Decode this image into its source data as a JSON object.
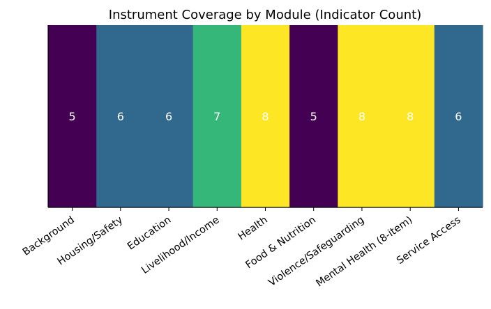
{
  "chart_data": {
    "type": "heatmap",
    "title": "Instrument Coverage by Module (Indicator Count)",
    "xlabel": "",
    "ylabel": "",
    "categories": [
      "Background",
      "Housing/Safety",
      "Education",
      "Livelihood/Income",
      "Health",
      "Food & Nutrition",
      "Violence/Safeguarding",
      "Mental Health (8-item)",
      "Service Access"
    ],
    "values": [
      5,
      6,
      6,
      7,
      8,
      5,
      8,
      8,
      6
    ],
    "color_scale": "viridis",
    "value_range": [
      5,
      8
    ],
    "colors": {
      "5": "#440154",
      "6": "#31688e",
      "7": "#35b779",
      "8": "#fde725"
    },
    "label_color": "#ffffff",
    "grid": false,
    "legend": "none"
  }
}
